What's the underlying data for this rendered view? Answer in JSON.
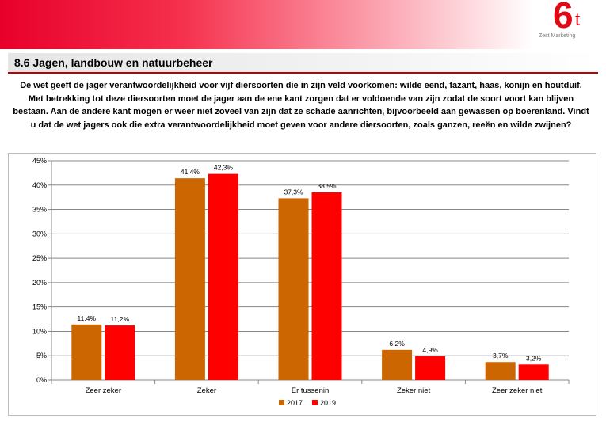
{
  "header": {
    "logo_mark": "6",
    "logo_sub": "t",
    "logo_tag": "Zest Marketing"
  },
  "section": {
    "title": "8.6 Jagen, landbouw en natuurbeheer"
  },
  "question": {
    "text": "De wet geeft de jager verantwoordelijkheid voor vijf diersoorten die in zijn veld voorkomen: wilde eend, fazant, haas, konijn en houtduif. Met betrekking tot deze diersoorten moet de jager aan de ene kant zorgen dat er voldoende van zijn zodat de soort voort kan blijven bestaan. Aan de andere kant mogen er weer niet zoveel van zijn dat ze schade aanrichten, bijvoorbeeld aan gewassen op boerenland. Vindt u dat de wet jagers ook die extra verantwoordelijkheid moet geven voor andere diersoorten, zoals ganzen, reeën en wilde zwijnen?"
  },
  "chart_data": {
    "type": "bar",
    "categories": [
      "Zeer zeker",
      "Zeker",
      "Er tussenin",
      "Zeker niet",
      "Zeer zeker niet"
    ],
    "series": [
      {
        "name": "2017",
        "color": "#cc6600",
        "values": [
          11.4,
          41.4,
          37.3,
          6.2,
          3.7
        ],
        "labels": [
          "11,4%",
          "41,4%",
          "37,3%",
          "6,2%",
          "3,7%"
        ]
      },
      {
        "name": "2019",
        "color": "#ff0000",
        "values": [
          11.2,
          42.3,
          38.5,
          4.9,
          3.2
        ],
        "labels": [
          "11,2%",
          "42,3%",
          "38,5%",
          "4,9%",
          "3,2%"
        ]
      }
    ],
    "yticks": [
      0,
      5,
      10,
      15,
      20,
      25,
      30,
      35,
      40,
      45
    ],
    "ytick_labels": [
      "0%",
      "5%",
      "10%",
      "15%",
      "20%",
      "25%",
      "30%",
      "35%",
      "40%",
      "45%"
    ],
    "ylim": [
      0,
      45
    ],
    "grid": true,
    "legend": "bottom-center"
  }
}
